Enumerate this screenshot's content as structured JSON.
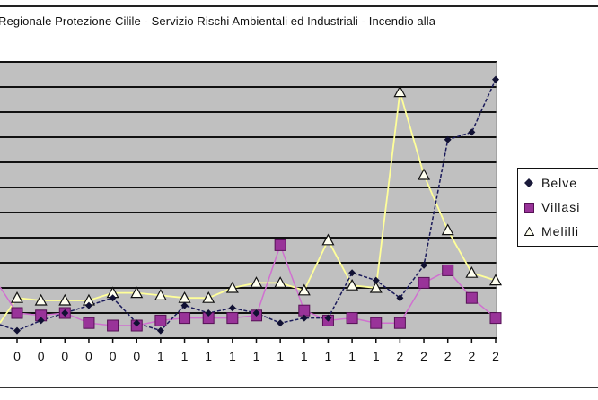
{
  "title": "Regionale Protezione Cilile - Servizio Rischi Ambientali ed Industriali - Incendio alla",
  "colors": {
    "plot_background": "#c0c0c0",
    "gridline": "#111111",
    "belvedere_line": "#1a1a5a",
    "villasmundo_line": "#d070d0",
    "villasmundo_marker": "#993399",
    "melilli_line": "#ffff99",
    "melilli_marker": "#fffff0"
  },
  "legend": {
    "items": [
      {
        "label": "Belve",
        "marker": "diamond-icon"
      },
      {
        "label": "Villasi",
        "marker": "square-icon"
      },
      {
        "label": "Melilli",
        "marker": "triangle-icon"
      }
    ]
  },
  "chart_data": {
    "type": "line",
    "title": "Regionale Protezione Cilile - Servizio Rischi Ambientali ed Industriali - Incendio alla",
    "xlabel": "",
    "ylabel": "",
    "x": [
      "0",
      "0",
      "0",
      "0",
      "0",
      "0",
      "1",
      "1",
      "1",
      "1",
      "1",
      "1",
      "1",
      "1",
      "1",
      "1",
      "2",
      "2",
      "2",
      "2",
      "2"
    ],
    "ylim": [
      0,
      11
    ],
    "y_units_note": "values in gridline units (y-axis labels not visible)",
    "grid": true,
    "legend_position": "right",
    "series": [
      {
        "name": "Belve",
        "marker": "diamond",
        "values": [
          0.3,
          0.7,
          1.0,
          1.3,
          1.6,
          0.6,
          0.3,
          1.3,
          1.0,
          1.2,
          1.0,
          0.6,
          0.8,
          0.8,
          2.6,
          2.3,
          1.6,
          2.9,
          7.9,
          8.2,
          10.3
        ]
      },
      {
        "name": "Villasi",
        "marker": "square",
        "values": [
          1.0,
          0.9,
          1.0,
          0.6,
          0.5,
          0.5,
          0.7,
          0.8,
          0.8,
          0.8,
          0.9,
          3.7,
          1.1,
          0.7,
          0.8,
          0.6,
          0.6,
          2.2,
          2.7,
          1.6,
          0.8
        ]
      },
      {
        "name": "Melilli",
        "marker": "triangle",
        "values": [
          1.6,
          1.5,
          1.5,
          1.5,
          1.8,
          1.8,
          1.7,
          1.6,
          1.6,
          2.0,
          2.2,
          2.2,
          1.9,
          3.9,
          2.1,
          2.0,
          9.8,
          6.5,
          4.3,
          2.6,
          2.3
        ]
      }
    ]
  }
}
